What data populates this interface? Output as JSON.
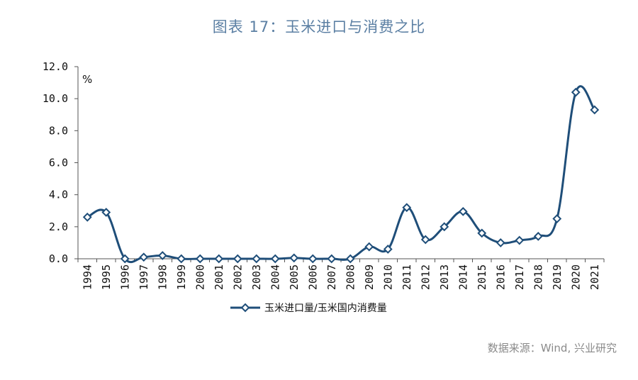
{
  "title": "图表 17：玉米进口与消费之比",
  "source": "数据来源：Wind, 兴业研究",
  "colors": {
    "series": "#1f4e79",
    "title": "#5b7fa3",
    "axis": "#555555"
  },
  "chart_data": {
    "type": "line",
    "title": "图表 17：玉米进口与消费之比",
    "unit": "%",
    "ylim": [
      0,
      12
    ],
    "yticks": [
      "0.0",
      "2.0",
      "4.0",
      "6.0",
      "8.0",
      "10.0",
      "12.0"
    ],
    "ytick_values": [
      0,
      2,
      4,
      6,
      8,
      10,
      12
    ],
    "categories": [
      "1994",
      "1995",
      "1996",
      "1997",
      "1998",
      "1999",
      "2000",
      "2001",
      "2002",
      "2003",
      "2004",
      "2005",
      "2006",
      "2007",
      "2008",
      "2009",
      "2010",
      "2011",
      "2012",
      "2013",
      "2014",
      "2015",
      "2016",
      "2017",
      "2018",
      "2019",
      "2020",
      "2021"
    ],
    "series": [
      {
        "name": "玉米进口量/玉米国内消费量",
        "marker": "diamond",
        "values": [
          2.6,
          2.9,
          0.0,
          0.1,
          0.2,
          0.0,
          0.0,
          0.0,
          0.0,
          0.0,
          0.0,
          0.05,
          0.0,
          0.0,
          0.0,
          0.75,
          0.6,
          3.2,
          1.2,
          2.0,
          2.95,
          1.6,
          1.0,
          1.15,
          1.4,
          2.5,
          10.4,
          9.3
        ]
      }
    ],
    "grid": false,
    "legend": "bottom"
  }
}
